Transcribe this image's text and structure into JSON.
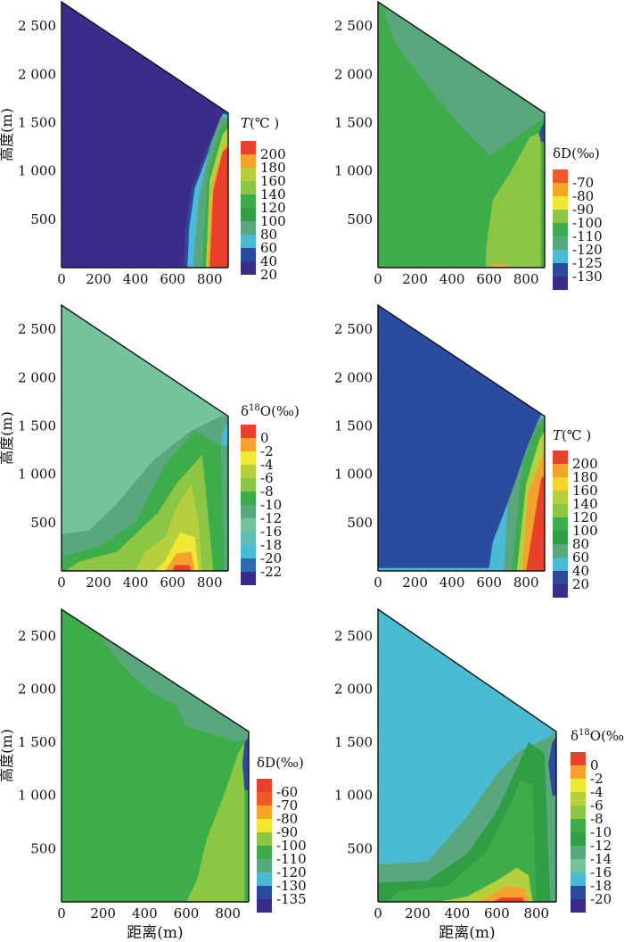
{
  "chart_data": [
    {
      "type": "heatmap",
      "quantity": "temperature",
      "legend_title_var": "T",
      "legend_title_unit": "(℃ )",
      "legend_levels": [
        "200",
        "180",
        "160",
        "140",
        "120",
        "100",
        "80",
        "60",
        "40",
        "20"
      ],
      "colors": [
        "#e8412b",
        "#f4a12e",
        "#b6cf3f",
        "#8cc644",
        "#3dad4b",
        "#2f9e44",
        "#5aa77e",
        "#49bcd3",
        "#2b4b9e",
        "#3d2b8a"
      ],
      "x_ticks": [
        "0",
        "200",
        "400",
        "600",
        "800"
      ],
      "y_ticks": [
        "2 500",
        "2 000",
        "1 500",
        "1 000",
        "500"
      ],
      "xlim": [
        0,
        900
      ],
      "ylim": [
        0,
        2750
      ],
      "ylabel": "高度(m)",
      "xlabel": "",
      "regions": [
        {
          "level": "20",
          "x": [
            0,
            900,
            900,
            0
          ],
          "y": [
            0,
            0,
            1600,
            2750
          ]
        },
        {
          "level": "40",
          "x": [
            640,
            900,
            900,
            880,
            800,
            700,
            670,
            660
          ],
          "y": [
            0,
            0,
            1600,
            1620,
            1300,
            800,
            400,
            0
          ]
        },
        {
          "level": "60",
          "x": [
            670,
            900,
            900,
            870,
            810,
            720,
            690,
            680
          ],
          "y": [
            0,
            0,
            1580,
            1590,
            1280,
            820,
            420,
            0
          ]
        },
        {
          "level": "80",
          "x": [
            700,
            900,
            900,
            860,
            800,
            740,
            710
          ],
          "y": [
            0,
            0,
            1550,
            1560,
            1250,
            700,
            0
          ]
        },
        {
          "level": "120",
          "x": [
            740,
            900,
            900,
            860,
            790,
            760
          ],
          "y": [
            0,
            0,
            1500,
            1450,
            1000,
            0
          ]
        },
        {
          "level": "160",
          "x": [
            760,
            900,
            900,
            870,
            800,
            780
          ],
          "y": [
            0,
            0,
            1450,
            1380,
            900,
            0
          ]
        },
        {
          "level": "180",
          "x": [
            775,
            900,
            900,
            880,
            810,
            790
          ],
          "y": [
            0,
            0,
            1300,
            1250,
            850,
            0
          ]
        },
        {
          "level": "200",
          "x": [
            790,
            900,
            900,
            870,
            820,
            800
          ],
          "y": [
            0,
            0,
            1250,
            1200,
            800,
            0
          ]
        }
      ]
    },
    {
      "type": "heatmap",
      "quantity": "deuterium",
      "legend_title_var": "δD",
      "legend_title_unit": "(‰)",
      "legend_levels": [
        "-70",
        "-80",
        "-90",
        "-100",
        "-110",
        "-120",
        "-125",
        "-130"
      ],
      "colors": [
        "#f05a28",
        "#f5a623",
        "#f1e833",
        "#8cc644",
        "#3dad4b",
        "#5aa77e",
        "#49bcd3",
        "#2b4b9e",
        "#3d2b8a"
      ],
      "x_ticks": [
        "0",
        "200",
        "400",
        "600",
        "800"
      ],
      "y_ticks": [
        "2 500",
        "2 000",
        "1 500",
        "1 000",
        "500"
      ],
      "xlim": [
        0,
        900
      ],
      "ylim": [
        0,
        2750
      ],
      "ylabel": "",
      "xlabel": "",
      "regions": [
        {
          "level": "-110",
          "x": [
            0,
            900,
            900,
            0
          ],
          "y": [
            0,
            0,
            1600,
            2750
          ]
        },
        {
          "level": "-120",
          "x": [
            40,
            900,
            900,
            860,
            600,
            560,
            500,
            300,
            100,
            40
          ],
          "y": [
            2700,
            1600,
            1550,
            1500,
            1150,
            1250,
            1350,
            1800,
            2300,
            2600
          ]
        },
        {
          "level": "-100",
          "x": [
            580,
            880,
            880,
            820,
            720,
            620,
            590
          ],
          "y": [
            0,
            0,
            1400,
            1350,
            1000,
            700,
            300
          ]
        },
        {
          "level": "-130",
          "x": [
            880,
            900,
            900,
            880,
            870
          ],
          "y": [
            1300,
            1300,
            1500,
            1450,
            1380
          ]
        },
        {
          "level": "-80",
          "x": [
            600,
            700,
            700,
            600
          ],
          "y": [
            0,
            0,
            30,
            30
          ]
        }
      ]
    },
    {
      "type": "heatmap",
      "quantity": "oxygen-18",
      "legend_title_var": "δ",
      "legend_title_sup": "18",
      "legend_title_unit": "O(‰)",
      "legend_levels": [
        "0",
        "-2",
        "-4",
        "-6",
        "-8",
        "-10",
        "-12",
        "-16",
        "-18",
        "-20",
        "-22"
      ],
      "colors": [
        "#e8412b",
        "#f4a12e",
        "#f1e833",
        "#b6cf3f",
        "#8cc644",
        "#3dad4b",
        "#5aa77e",
        "#76c29a",
        "#5fbfb6",
        "#49bcd3",
        "#2b6cb0",
        "#3d2b8a"
      ],
      "x_ticks": [
        "0",
        "200",
        "400",
        "600",
        "800"
      ],
      "y_ticks": [
        "2 500",
        "2 000",
        "1 500",
        "1 000",
        "500"
      ],
      "xlim": [
        0,
        900
      ],
      "ylim": [
        0,
        2750
      ],
      "ylabel": "高度(m)",
      "xlabel": "",
      "regions": [
        {
          "level": "-16",
          "x": [
            0,
            900,
            900,
            0
          ],
          "y": [
            0,
            0,
            1600,
            2750
          ]
        },
        {
          "level": "-12",
          "x": [
            0,
            900,
            900,
            860,
            700,
            500,
            300,
            150,
            0
          ],
          "y": [
            0,
            0,
            1600,
            1600,
            1450,
            1150,
            700,
            420,
            380
          ]
        },
        {
          "level": "-10",
          "x": [
            0,
            880,
            860,
            720,
            560,
            400,
            200,
            0
          ],
          "y": [
            0,
            0,
            1300,
            1450,
            1100,
            500,
            250,
            150
          ]
        },
        {
          "level": "-8",
          "x": [
            20,
            820,
            760,
            620,
            520,
            300,
            100
          ],
          "y": [
            0,
            0,
            1200,
            900,
            600,
            200,
            100
          ]
        },
        {
          "level": "-6",
          "x": [
            400,
            760,
            740,
            700,
            620,
            560,
            450
          ],
          "y": [
            0,
            0,
            500,
            900,
            650,
            350,
            200
          ]
        },
        {
          "level": "-4",
          "x": [
            500,
            740,
            720,
            640,
            560
          ],
          "y": [
            0,
            0,
            350,
            400,
            100
          ]
        },
        {
          "level": "-2",
          "x": [
            560,
            720,
            700,
            620
          ],
          "y": [
            0,
            0,
            200,
            180
          ]
        },
        {
          "level": "0",
          "x": [
            600,
            700,
            690,
            610
          ],
          "y": [
            0,
            0,
            60,
            60
          ]
        },
        {
          "level": "-20",
          "x": [
            860,
            900,
            900,
            870
          ],
          "y": [
            1300,
            1300,
            1550,
            1450
          ]
        }
      ]
    },
    {
      "type": "heatmap",
      "quantity": "temperature",
      "legend_title_var": "T",
      "legend_title_unit": "(℃ )",
      "legend_levels": [
        "200",
        "180",
        "160",
        "140",
        "120",
        "100",
        "80",
        "60",
        "40",
        "20"
      ],
      "colors": [
        "#e8412b",
        "#f4a12e",
        "#f5d42e",
        "#b6cf3f",
        "#8cc644",
        "#3dad4b",
        "#2f9e44",
        "#5aa77e",
        "#49bcd3",
        "#2b4b9e",
        "#3d2b8a"
      ],
      "x_ticks": [
        "0",
        "200",
        "400",
        "600",
        "800"
      ],
      "y_ticks": [
        "2 500",
        "2 000",
        "1 500",
        "1 000",
        "500"
      ],
      "xlim": [
        0,
        900
      ],
      "ylim": [
        0,
        2750
      ],
      "ylabel": "",
      "xlabel": "",
      "regions": [
        {
          "level": "20",
          "x": [
            0,
            900,
            900,
            0
          ],
          "y": [
            0,
            0,
            1600,
            2750
          ]
        },
        {
          "level": "40",
          "x": [
            0,
            900,
            900,
            880,
            820,
            720,
            620,
            600,
            0
          ],
          "y": [
            0,
            0,
            1600,
            1620,
            1300,
            800,
            300,
            30,
            30
          ]
        },
        {
          "level": "60",
          "x": [
            660,
            900,
            900,
            870,
            800,
            700,
            680
          ],
          "y": [
            0,
            0,
            1580,
            1580,
            1250,
            700,
            0
          ]
        },
        {
          "level": "100",
          "x": [
            700,
            900,
            900,
            860,
            780,
            720
          ],
          "y": [
            0,
            0,
            1550,
            1500,
            1100,
            0
          ]
        },
        {
          "level": "140",
          "x": [
            730,
            900,
            900,
            870,
            800,
            750
          ],
          "y": [
            0,
            0,
            1450,
            1350,
            900,
            0
          ]
        },
        {
          "level": "180",
          "x": [
            760,
            900,
            900,
            880,
            810,
            780
          ],
          "y": [
            0,
            0,
            1250,
            1150,
            800,
            0
          ]
        },
        {
          "level": "200",
          "x": [
            780,
            900,
            900,
            880,
            800
          ],
          "y": [
            0,
            0,
            1000,
            950,
            0
          ]
        }
      ]
    },
    {
      "type": "heatmap",
      "quantity": "deuterium",
      "legend_title_var": "δD",
      "legend_title_unit": "(‰)",
      "legend_levels": [
        "-60",
        "-70",
        "-80",
        "-90",
        "-100",
        "-110",
        "-120",
        "-130",
        "-135"
      ],
      "colors": [
        "#e8412b",
        "#f05a28",
        "#f5a623",
        "#f1e833",
        "#8cc644",
        "#3dad4b",
        "#5aa77e",
        "#49bcd3",
        "#2b4b9e",
        "#3d2b8a"
      ],
      "x_ticks": [
        "0",
        "200",
        "400",
        "600",
        "800"
      ],
      "y_ticks": [
        "2 500",
        "2 000",
        "1 500",
        "1 000",
        "500"
      ],
      "xlim": [
        0,
        900
      ],
      "ylim": [
        0,
        2750
      ],
      "ylabel": "高度(m)",
      "xlabel": "距离(m)",
      "regions": [
        {
          "level": "-110",
          "x": [
            0,
            900,
            900,
            0
          ],
          "y": [
            0,
            0,
            1600,
            2750
          ]
        },
        {
          "level": "-120",
          "x": [
            200,
            900,
            900,
            860,
            600,
            550,
            450,
            350,
            200
          ],
          "y": [
            2500,
            1600,
            1550,
            1500,
            1650,
            1850,
            1950,
            2100,
            2450
          ]
        },
        {
          "level": "-100",
          "x": [
            600,
            880,
            880,
            850,
            780,
            700,
            650
          ],
          "y": [
            0,
            0,
            1500,
            1400,
            1000,
            600,
            200
          ]
        },
        {
          "level": "-135",
          "x": [
            880,
            900,
            900,
            880,
            870
          ],
          "y": [
            1050,
            1050,
            1550,
            1500,
            1300
          ]
        }
      ]
    },
    {
      "type": "heatmap",
      "quantity": "oxygen-18",
      "legend_title_var": "δ",
      "legend_title_sup": "18",
      "legend_title_unit": "O(‰",
      "legend_levels": [
        "0",
        "-2",
        "-4",
        "-6",
        "-8",
        "-10",
        "-12",
        "-14",
        "-16",
        "-18",
        "-20"
      ],
      "colors": [
        "#e8412b",
        "#f4a12e",
        "#f1e833",
        "#b6cf3f",
        "#8cc644",
        "#3dad4b",
        "#2f9e44",
        "#5aa77e",
        "#76c29a",
        "#49bcd3",
        "#2b4b9e",
        "#3d2b8a"
      ],
      "x_ticks": [
        "0",
        "200",
        "400",
        "600",
        "800"
      ],
      "y_ticks": [
        "2 500",
        "2 000",
        "1 500",
        "1 000",
        "500"
      ],
      "xlim": [
        0,
        900
      ],
      "ylim": [
        0,
        2750
      ],
      "ylabel": "",
      "xlabel": "距离(m)",
      "regions": [
        {
          "level": "-18",
          "x": [
            0,
            900,
            900,
            0
          ],
          "y": [
            0,
            0,
            1600,
            2750
          ]
        },
        {
          "level": "-14",
          "x": [
            0,
            900,
            900,
            860,
            700,
            600,
            450,
            250,
            0
          ],
          "y": [
            0,
            0,
            1600,
            1550,
            1400,
            1200,
            800,
            380,
            350
          ]
        },
        {
          "level": "-12",
          "x": [
            0,
            870,
            840,
            760,
            700,
            600,
            450,
            250,
            0
          ],
          "y": [
            0,
            0,
            1400,
            1500,
            1250,
            850,
            450,
            200,
            180
          ]
        },
        {
          "level": "-10",
          "x": [
            50,
            800,
            780,
            720,
            640,
            540,
            350,
            100
          ],
          "y": [
            0,
            0,
            1100,
            1150,
            800,
            450,
            150,
            100
          ]
        },
        {
          "level": "-6",
          "x": [
            300,
            780,
            760,
            700,
            600,
            450
          ],
          "y": [
            0,
            0,
            250,
            320,
            200,
            50
          ]
        },
        {
          "level": "-2",
          "x": [
            500,
            760,
            740,
            650,
            560
          ],
          "y": [
            0,
            0,
            120,
            150,
            50
          ]
        },
        {
          "level": "0",
          "x": [
            580,
            740,
            730,
            620
          ],
          "y": [
            0,
            0,
            40,
            40
          ]
        },
        {
          "level": "-20",
          "x": [
            880,
            900,
            900,
            880,
            860
          ],
          "y": [
            1000,
            1000,
            1550,
            1500,
            1300
          ]
        }
      ]
    }
  ]
}
